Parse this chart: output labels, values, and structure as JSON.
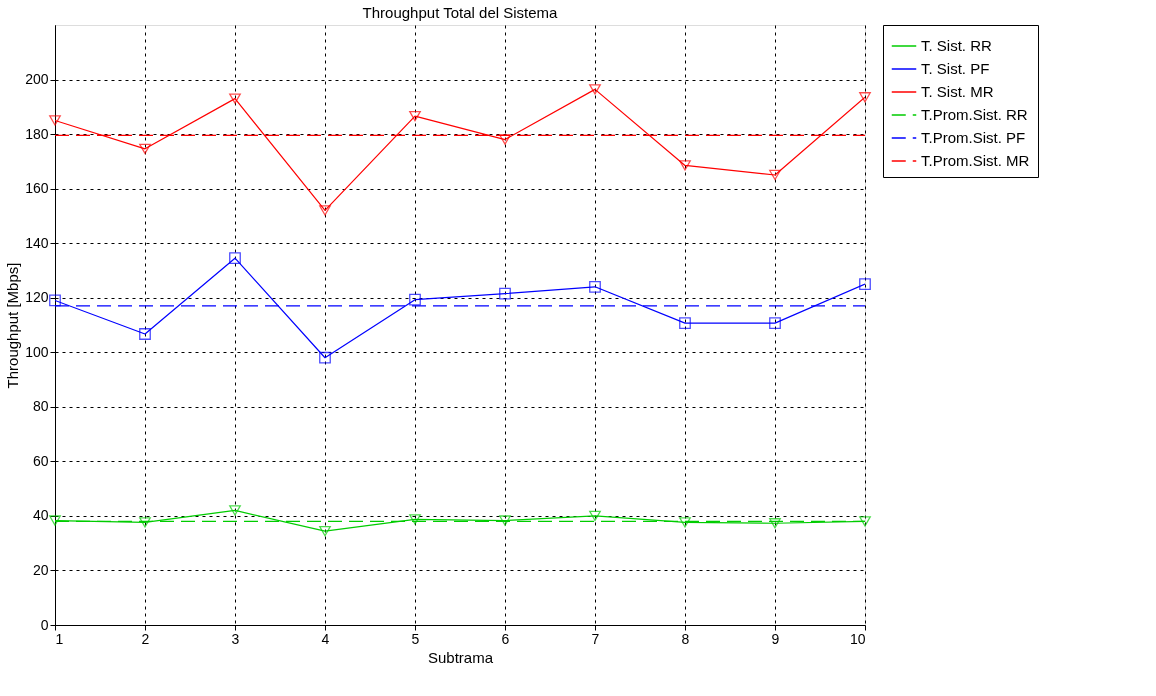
{
  "chart_data": {
    "type": "line",
    "title": "Throughput Total del Sistema",
    "xlabel": "Subtrama",
    "ylabel": "Throughput [Mbps]",
    "x": [
      1,
      2,
      3,
      4,
      5,
      6,
      7,
      8,
      9,
      10
    ],
    "xlim": [
      1,
      10
    ],
    "xticks": [
      1,
      2,
      3,
      4,
      5,
      6,
      7,
      8,
      9,
      10
    ],
    "ylim": [
      0,
      220
    ],
    "yticks": [
      0,
      20,
      40,
      60,
      80,
      100,
      120,
      140,
      160,
      180,
      200
    ],
    "grid": true,
    "legend": "top right",
    "series": [
      {
        "name": "T. Sist. RR",
        "color": "#00cc00",
        "marker": "triangle",
        "line_style": "solid",
        "values": [
          38.3,
          37.6,
          42,
          34.4,
          38.7,
          38.3,
          40,
          37.6,
          37.3,
          38
        ]
      },
      {
        "name": "T. Sist. PF",
        "color": "#0000ff",
        "marker": "square",
        "line_style": "solid",
        "values": [
          119,
          106.7,
          134.5,
          98,
          119.3,
          121.5,
          124,
          110.7,
          110.7,
          125
        ]
      },
      {
        "name": "T. Sist. MR",
        "color": "#ff0000",
        "marker": "triangle",
        "line_style": "solid",
        "values": [
          185,
          174.6,
          193,
          152,
          186.6,
          178,
          196.4,
          168.5,
          165,
          193.5
        ]
      },
      {
        "name": "T.Prom.Sist. RR",
        "color": "#00cc00",
        "marker": "none",
        "line_style": "dashed",
        "values": [
          38,
          38,
          38,
          38,
          38,
          38,
          38,
          38,
          38,
          38
        ]
      },
      {
        "name": "T.Prom.Sist. PF",
        "color": "#0000ff",
        "marker": "none",
        "line_style": "dashed",
        "values": [
          117,
          117,
          117,
          117,
          117,
          117,
          117,
          117,
          117,
          117
        ]
      },
      {
        "name": "T.Prom.Sist. MR",
        "color": "#ff0000",
        "marker": "none",
        "line_style": "dashed",
        "values": [
          179.5,
          179.5,
          179.5,
          179.5,
          179.5,
          179.5,
          179.5,
          179.5,
          179.5,
          179.5
        ]
      }
    ]
  }
}
